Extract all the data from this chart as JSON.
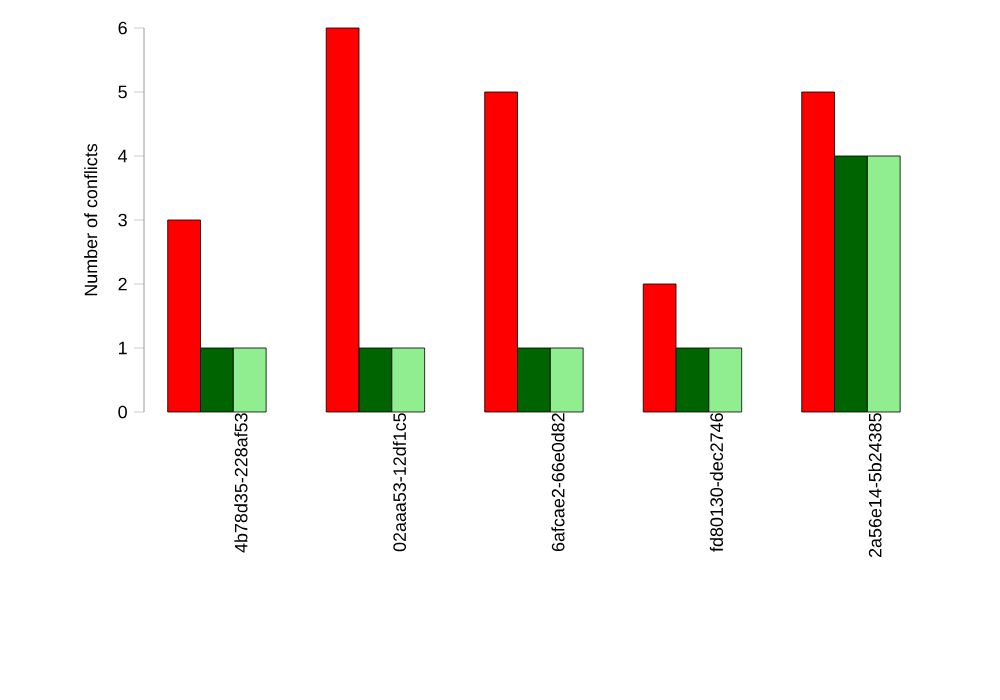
{
  "chart_data": {
    "type": "bar",
    "ylabel": "Number of conflicts",
    "categories": [
      "4b78d35-228af53",
      "02aaa53-12df1c5",
      "6afcae2-66e0d82",
      "fd80130-dec2746",
      "2a56e14-5b24385"
    ],
    "series": [
      {
        "color": "#ff0000",
        "values": [
          3,
          6,
          5,
          2,
          5
        ]
      },
      {
        "color": "#006400",
        "values": [
          1,
          1,
          1,
          1,
          4
        ]
      },
      {
        "color": "#90ee90",
        "values": [
          1,
          1,
          1,
          1,
          4
        ]
      }
    ],
    "ylim": [
      0,
      6
    ],
    "yticks": [
      0,
      1,
      2,
      3,
      4,
      5,
      6
    ]
  }
}
